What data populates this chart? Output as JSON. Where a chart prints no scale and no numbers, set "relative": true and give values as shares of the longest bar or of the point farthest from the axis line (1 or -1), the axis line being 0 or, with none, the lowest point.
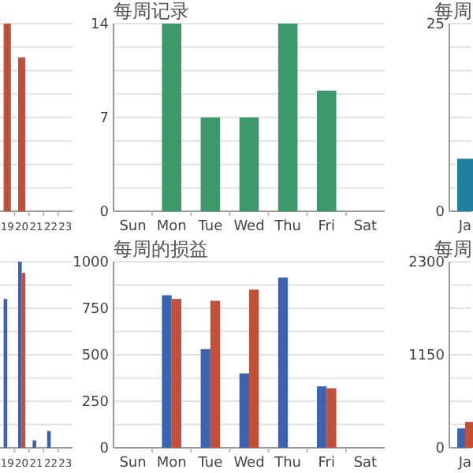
{
  "chart_data": [
    {
      "type": "bar",
      "relative": true,
      "categories": [
        "19",
        "20",
        "21",
        "22",
        "23"
      ],
      "grid": "y",
      "tick_labels": "x",
      "series": [
        {
          "color": "#c0503a",
          "values": [
            1,
            0.82,
            null,
            null,
            null
          ]
        }
      ]
    },
    {
      "type": "bar",
      "title": "每周记录",
      "categories": [
        "Sun",
        "Mon",
        "Tue",
        "Wed",
        "Thu",
        "Fri",
        "Sat"
      ],
      "ylim": [
        0,
        14
      ],
      "yticks": [
        0,
        7,
        14
      ],
      "grid": "y",
      "series": [
        {
          "color": "#3c9a6a",
          "values": [
            null,
            14,
            7,
            7,
            14,
            9,
            null
          ]
        }
      ]
    },
    {
      "type": "bar",
      "title": "每周",
      "categories": [
        "Ja"
      ],
      "ylim": [
        0,
        25
      ],
      "yticks": [
        0,
        25
      ],
      "grid": "y",
      "series": [
        {
          "color": "#1f7f9c",
          "values": [
            7
          ]
        }
      ]
    },
    {
      "type": "bar",
      "relative": true,
      "categories": [
        "19",
        "20",
        "21",
        "22",
        "23"
      ],
      "grid": "y",
      "tick_labels": "x",
      "series": [
        {
          "color": "#3b63b0",
          "values": [
            0.8,
            1,
            0.04,
            0.09,
            null
          ]
        },
        {
          "color": "#c0503a",
          "values": [
            null,
            0.94,
            null,
            null,
            null
          ]
        }
      ]
    },
    {
      "type": "bar",
      "title": "每周的损益",
      "categories": [
        "Sun",
        "Mon",
        "Tue",
        "Wed",
        "Thu",
        "Fri",
        "Sat"
      ],
      "ylim": [
        0,
        1000
      ],
      "yticks": [
        0,
        250,
        500,
        750,
        1000
      ],
      "grid": "y",
      "series": [
        {
          "color": "#3b63b0",
          "values": [
            null,
            820,
            530,
            400,
            915,
            330,
            null
          ]
        },
        {
          "color": "#c0503a",
          "values": [
            null,
            800,
            790,
            850,
            null,
            320,
            null
          ]
        }
      ]
    },
    {
      "type": "bar",
      "title": "每周",
      "categories": [
        "Ja"
      ],
      "ylim": [
        0,
        2300
      ],
      "yticks": [
        0,
        1150,
        2300
      ],
      "grid": "y",
      "series": [
        {
          "color": "#3b63b0",
          "values": [
            240
          ]
        },
        {
          "color": "#c0503a",
          "values": [
            320
          ]
        }
      ]
    }
  ]
}
